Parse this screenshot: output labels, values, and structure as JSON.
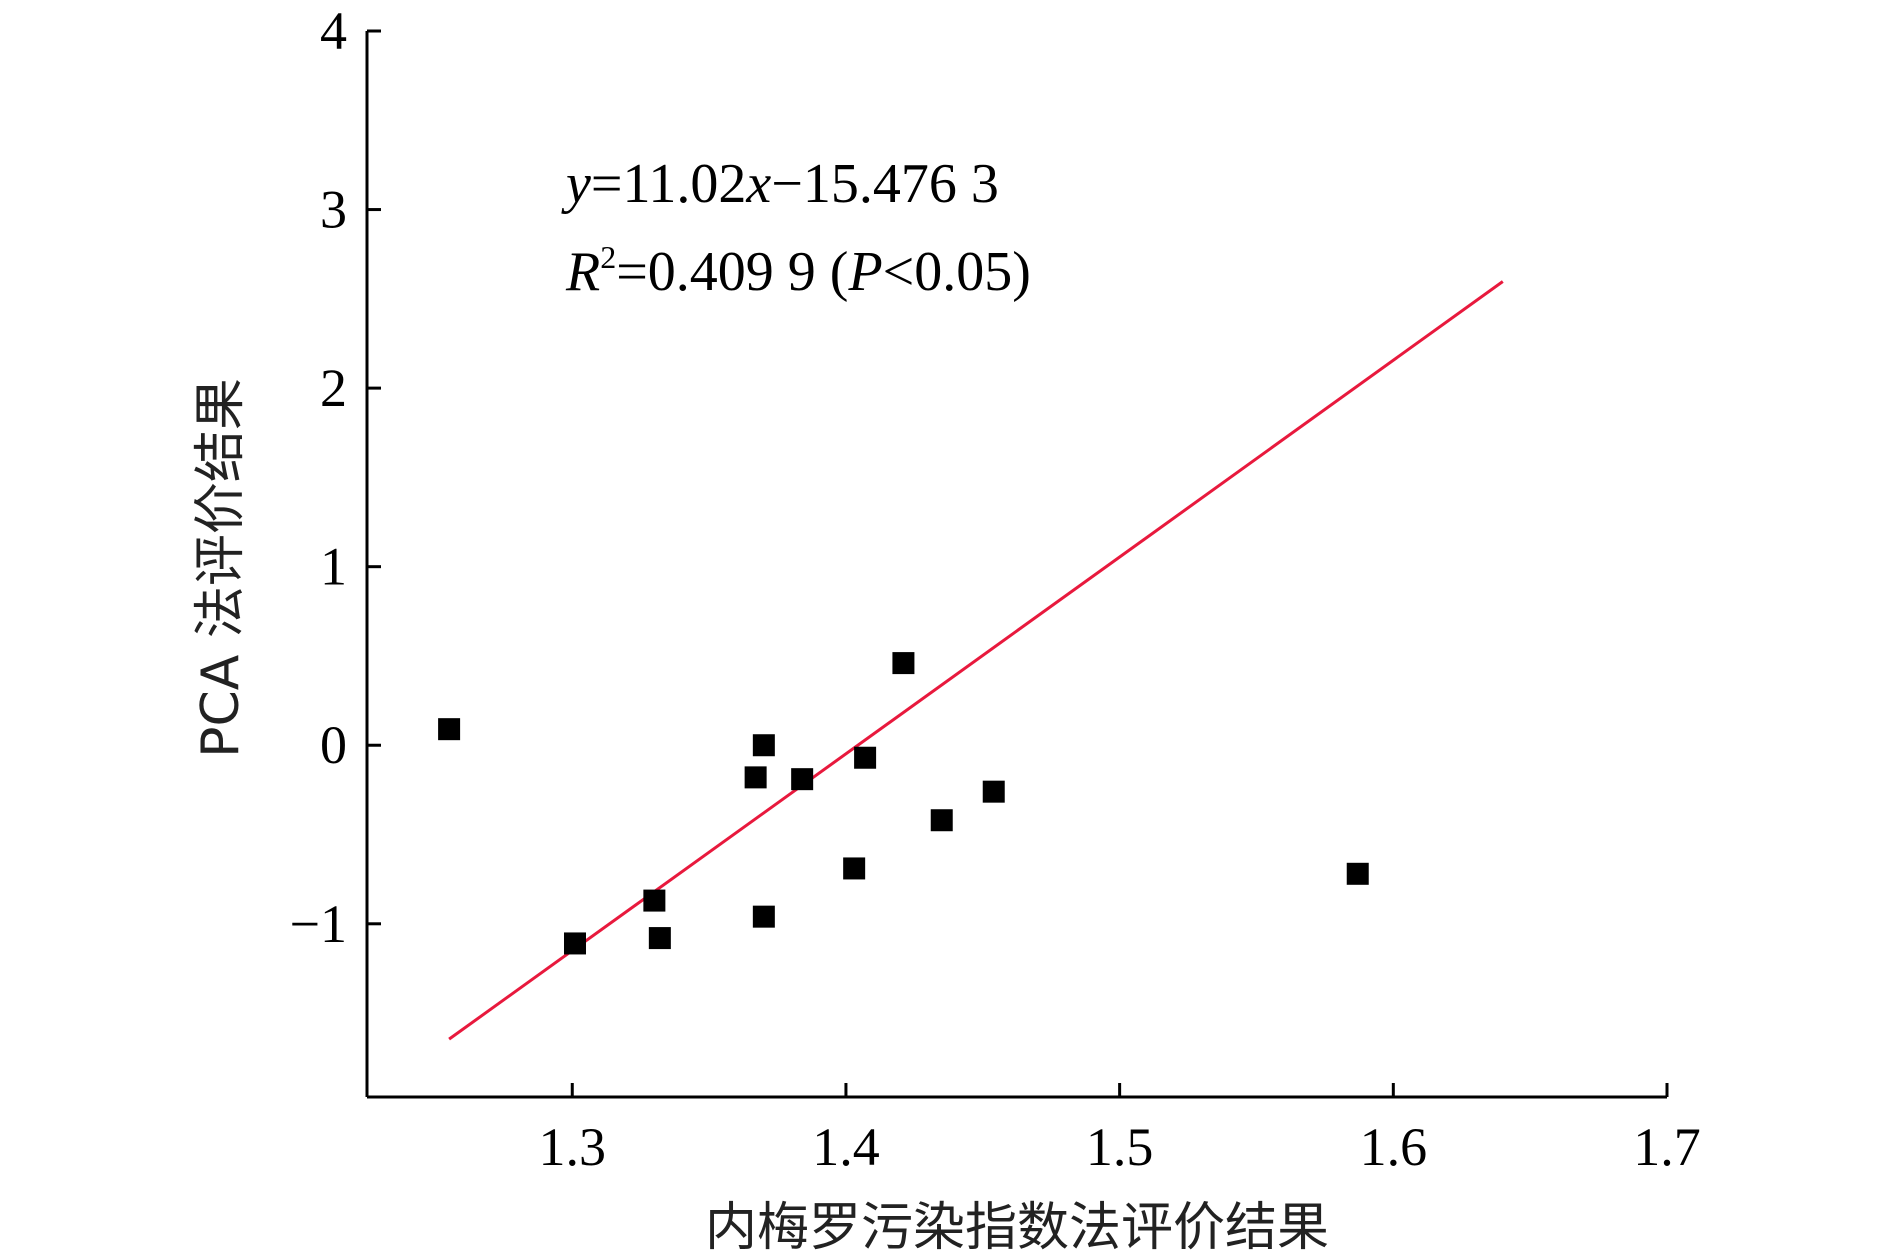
{
  "chart_data": {
    "type": "scatter",
    "title": "",
    "xlabel": "内梅罗污染指数法评价结果",
    "ylabel": "PCA 法评价结果",
    "xlim": [
      1.225,
      1.7
    ],
    "ylim": [
      -1.97,
      4
    ],
    "xticks": [
      1.3,
      1.4,
      1.5,
      1.6,
      1.7
    ],
    "xtick_labels": [
      "1.3",
      "1.4",
      "1.5",
      "1.6",
      "1.7"
    ],
    "yticks": [
      -1,
      0,
      1,
      2,
      3,
      4
    ],
    "ytick_labels": [
      "−1",
      "0",
      "1",
      "2",
      "3",
      "4"
    ],
    "grid": false,
    "legend": "none",
    "points": [
      {
        "x": 1.255,
        "y": 0.09
      },
      {
        "x": 1.301,
        "y": -1.11
      },
      {
        "x": 1.33,
        "y": -0.87
      },
      {
        "x": 1.332,
        "y": -1.08
      },
      {
        "x": 1.367,
        "y": -0.18
      },
      {
        "x": 1.37,
        "y": 0.0
      },
      {
        "x": 1.37,
        "y": -0.96
      },
      {
        "x": 1.384,
        "y": -0.19
      },
      {
        "x": 1.403,
        "y": -0.69
      },
      {
        "x": 1.407,
        "y": -0.07
      },
      {
        "x": 1.421,
        "y": 0.46
      },
      {
        "x": 1.435,
        "y": -0.42
      },
      {
        "x": 1.454,
        "y": -0.26
      },
      {
        "x": 1.587,
        "y": -0.72
      }
    ],
    "fit_line": {
      "x": [
        1.255,
        1.64
      ],
      "y": [
        -1.646,
        2.597
      ]
    },
    "annotations": {
      "equation": {
        "y": "y",
        "eq_rest": "=11.02",
        "x": "x",
        "rest": "−15.476 3"
      },
      "r2": {
        "R": "R",
        "sup": "2",
        "val": "=0.409 9 (",
        "P": "P",
        "rest": "<0.05)"
      }
    },
    "colors": {
      "fit_line": "#e8193d",
      "points": "#000000"
    }
  }
}
